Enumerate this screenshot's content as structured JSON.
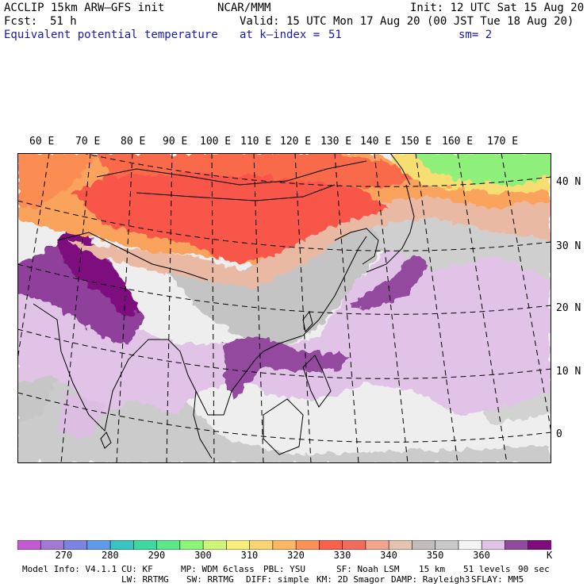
{
  "header": {
    "model": "ACCLIP 15km ARW–GFS init",
    "org": "NCAR/MMM",
    "init": "Init: 12 UTC Sat 15 Aug 20",
    "fcst_label": "Fcst:",
    "fcst_value": "51 h",
    "valid": "Valid: 15 UTC Mon 17 Aug 20 (00 JST Tue 18 Aug 20)",
    "field": "Equivalent potential temperature",
    "level_label": "at k–index =",
    "level_value": "51",
    "smoothing": "sm= 2"
  },
  "map": {
    "lon_labels": [
      "60 E",
      "70 E",
      "80 E",
      "90 E",
      "100 E",
      "110 E",
      "120 E",
      "130 E",
      "140 E",
      "150 E",
      "160 E",
      "170 E"
    ],
    "lat_labels": [
      "40 N",
      "30 N",
      "20 N",
      "10 N",
      "0"
    ]
  },
  "colorbar": {
    "colors": [
      "#c35ad3",
      "#a27ad6",
      "#7b84e1",
      "#5f9be9",
      "#39c3c3",
      "#3dd9a1",
      "#5ae888",
      "#8cf476",
      "#ccf57a",
      "#f9ee7c",
      "#fbd372",
      "#fbb763",
      "#fb9155",
      "#f9614c",
      "#f26b5b",
      "#f1a58f",
      "#e6c3b0",
      "#c2bcba",
      "#c8c8c8",
      "#f4f4f4",
      "#e2c2e6",
      "#924a9e",
      "#7e0c7e"
    ],
    "tick_labels": [
      "270",
      "280",
      "290",
      "300",
      "310",
      "320",
      "330",
      "340",
      "350",
      "360"
    ],
    "tick_positions": [
      2,
      4,
      6,
      8,
      10,
      12,
      14,
      16,
      18,
      20
    ],
    "unit": "K"
  },
  "footer": {
    "line1": [
      "Model Info: V4.1.1",
      "CU: KF",
      "MP: WDM 6class",
      "PBL: YSU",
      "SF: Noah LSM",
      "15 km",
      "51 levels",
      "90 sec"
    ],
    "line2": [
      "LW: RRTMG",
      "SW: RRTMG",
      "DIFF: simple",
      "KM: 2D Smagor",
      "DAMP: Rayleigh3",
      "SFLAY: MM5"
    ]
  }
}
